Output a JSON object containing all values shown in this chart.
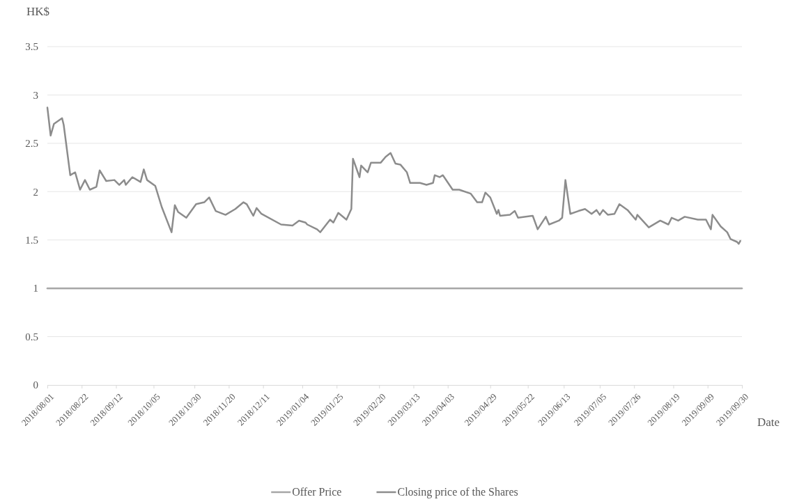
{
  "chart_data": {
    "type": "line",
    "ylabel": "HK$",
    "xlabel": "Date",
    "xlim": [
      "2018-08-01",
      "2019-09-30"
    ],
    "xticks": [
      {
        "value": "2018-08-01",
        "label": "2018/08/01"
      },
      {
        "value": "2018-08-22",
        "label": "2018/08/22"
      },
      {
        "value": "2018-09-12",
        "label": "2018/09/12"
      },
      {
        "value": "2018-10-05",
        "label": "2018/10/05"
      },
      {
        "value": "2018-10-30",
        "label": "2018/10/30"
      },
      {
        "value": "2018-11-20",
        "label": "2018/11/20"
      },
      {
        "value": "2018-12-11",
        "label": "2018/12/11"
      },
      {
        "value": "2019-01-04",
        "label": "2019/01/04"
      },
      {
        "value": "2019-01-25",
        "label": "2019/01/25"
      },
      {
        "value": "2019-02-20",
        "label": "2019/02/20"
      },
      {
        "value": "2019-03-13",
        "label": "2019/03/13"
      },
      {
        "value": "2019-04-03",
        "label": "2019/04/03"
      },
      {
        "value": "2019-04-29",
        "label": "2019/04/29"
      },
      {
        "value": "2019-05-22",
        "label": "2019/05/22"
      },
      {
        "value": "2019-06-13",
        "label": "2019/06/13"
      },
      {
        "value": "2019-07-05",
        "label": "2019/07/05"
      },
      {
        "value": "2019-07-26",
        "label": "2019/07/26"
      },
      {
        "value": "2019-08-19",
        "label": "2019/08/19"
      },
      {
        "value": "2019-09-09",
        "label": "2019/09/09"
      },
      {
        "value": "2019-09-30",
        "label": "2019/09/30"
      }
    ],
    "ylim": [
      0,
      3.5
    ],
    "yticks": [
      0,
      0.5,
      1,
      1.5,
      2,
      2.5,
      3,
      3.5
    ],
    "grid": "y",
    "legend": "bottom",
    "marker": "none",
    "line_style": "solid",
    "series": [
      {
        "name": "Offer Price",
        "color": "#a6a6a6",
        "x": [
          "2018-08-01",
          "2019-09-30"
        ],
        "values": [
          1,
          1
        ]
      },
      {
        "name": "Closing price of the Shares",
        "color": "#8c8c8c",
        "x": [
          "2018-08-01",
          "2018-08-03",
          "2018-08-05",
          "2018-08-10",
          "2018-08-11",
          "2018-08-15",
          "2018-08-18",
          "2018-08-21",
          "2018-08-24",
          "2018-08-27",
          "2018-08-31",
          "2018-09-02",
          "2018-09-06",
          "2018-09-11",
          "2018-09-14",
          "2018-09-17",
          "2018-09-18",
          "2018-09-22",
          "2018-09-27",
          "2018-09-29",
          "2018-10-01",
          "2018-10-06",
          "2018-10-10",
          "2018-10-16",
          "2018-10-18",
          "2018-10-20",
          "2018-10-25",
          "2018-10-31",
          "2018-11-05",
          "2018-11-08",
          "2018-11-12",
          "2018-11-18",
          "2018-11-24",
          "2018-11-29",
          "2018-12-01",
          "2018-12-05",
          "2018-12-07",
          "2018-12-10",
          "2018-12-22",
          "2018-12-29",
          "2019-01-02",
          "2019-01-06",
          "2019-01-07",
          "2019-01-13",
          "2019-01-15",
          "2019-01-21",
          "2019-01-23",
          "2019-01-26",
          "2019-01-31",
          "2019-02-03",
          "2019-02-04",
          "2019-02-08",
          "2019-02-09",
          "2019-02-13",
          "2019-02-15",
          "2019-02-21",
          "2019-02-24",
          "2019-02-27",
          "2019-03-02",
          "2019-03-05",
          "2019-03-09",
          "2019-03-11",
          "2019-03-17",
          "2019-03-21",
          "2019-03-25",
          "2019-03-26",
          "2019-03-29",
          "2019-03-31",
          "2019-04-06",
          "2019-04-10",
          "2019-04-17",
          "2019-04-21",
          "2019-04-24",
          "2019-04-26",
          "2019-04-29",
          "2019-05-03",
          "2019-05-04",
          "2019-05-05",
          "2019-05-11",
          "2019-05-14",
          "2019-05-16",
          "2019-05-25",
          "2019-05-28",
          "2019-06-02",
          "2019-06-04",
          "2019-06-10",
          "2019-06-12",
          "2019-06-14",
          "2019-06-17",
          "2019-06-22",
          "2019-06-26",
          "2019-06-30",
          "2019-07-03",
          "2019-07-05",
          "2019-07-07",
          "2019-07-10",
          "2019-07-14",
          "2019-07-17",
          "2019-07-22",
          "2019-07-27",
          "2019-07-28",
          "2019-08-04",
          "2019-08-11",
          "2019-08-16",
          "2019-08-18",
          "2019-08-22",
          "2019-08-26",
          "2019-09-03",
          "2019-09-08",
          "2019-09-11",
          "2019-09-12",
          "2019-09-17",
          "2019-09-21",
          "2019-09-23",
          "2019-09-27",
          "2019-09-28",
          "2019-09-29"
        ],
        "values": [
          2.87,
          2.58,
          2.7,
          2.76,
          2.69,
          2.17,
          2.2,
          2.02,
          2.12,
          2.02,
          2.05,
          2.22,
          2.11,
          2.12,
          2.07,
          2.12,
          2.07,
          2.15,
          2.1,
          2.23,
          2.12,
          2.06,
          1.84,
          1.58,
          1.86,
          1.79,
          1.73,
          1.87,
          1.89,
          1.94,
          1.8,
          1.76,
          1.82,
          1.89,
          1.87,
          1.75,
          1.83,
          1.77,
          1.66,
          1.65,
          1.7,
          1.68,
          1.66,
          1.61,
          1.58,
          1.71,
          1.68,
          1.78,
          1.71,
          1.82,
          2.34,
          2.15,
          2.27,
          2.2,
          2.3,
          2.3,
          2.36,
          2.4,
          2.29,
          2.28,
          2.2,
          2.09,
          2.09,
          2.07,
          2.09,
          2.17,
          2.15,
          2.17,
          2.02,
          2.02,
          1.98,
          1.89,
          1.89,
          1.99,
          1.94,
          1.77,
          1.81,
          1.75,
          1.76,
          1.8,
          1.73,
          1.75,
          1.61,
          1.74,
          1.66,
          1.7,
          1.73,
          2.12,
          1.77,
          1.8,
          1.82,
          1.77,
          1.81,
          1.76,
          1.81,
          1.76,
          1.77,
          1.87,
          1.81,
          1.71,
          1.76,
          1.63,
          1.7,
          1.66,
          1.73,
          1.7,
          1.74,
          1.71,
          1.71,
          1.61,
          1.76,
          1.64,
          1.58,
          1.51,
          1.48,
          1.46,
          1.49
        ]
      }
    ]
  }
}
